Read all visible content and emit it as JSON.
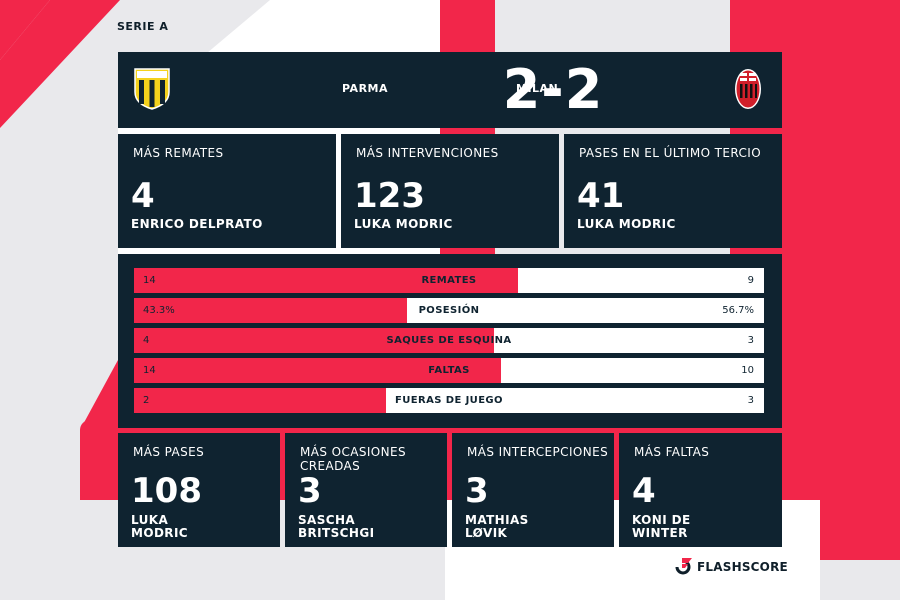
{
  "league": "SERIE A",
  "match": {
    "home_team": "PARMA",
    "away_team": "MILAN",
    "score": "2-2"
  },
  "top_cards": [
    {
      "label": "MÁS REMATES",
      "value": "4",
      "player": "ENRICO DELPRATO"
    },
    {
      "label": "MÁS INTERVENCIONES",
      "value": "123",
      "player": "LUKA MODRIC"
    },
    {
      "label": "PASES EN EL ÚLTIMO TERCIO",
      "value": "41",
      "player": "LUKA MODRIC"
    }
  ],
  "stats": [
    {
      "label": "REMATES",
      "home": "14",
      "away": "9",
      "home_share": 0.609
    },
    {
      "label": "POSESIÓN",
      "home": "43.3%",
      "away": "56.7%",
      "home_share": 0.433
    },
    {
      "label": "SAQUES DE ESQUINA",
      "home": "4",
      "away": "3",
      "home_share": 0.571
    },
    {
      "label": "FALTAS",
      "home": "14",
      "away": "10",
      "home_share": 0.583
    },
    {
      "label": "FUERAS DE JUEGO",
      "home": "2",
      "away": "3",
      "home_share": 0.4
    }
  ],
  "bottom_cards": [
    {
      "label": "MÁS PASES",
      "value": "108",
      "player_line1": "LUKA",
      "player_line2": "MODRIC"
    },
    {
      "label": "MÁS OCASIONES",
      "label_line2": "CREADAS",
      "value": "3",
      "player_line1": "SASCHA",
      "player_line2": "BRITSCHGI"
    },
    {
      "label": "MÁS INTERCEPCIONES",
      "value": "3",
      "player_line1": "MATHIAS",
      "player_line2": "LØVIK"
    },
    {
      "label": "MÁS FALTAS",
      "value": "4",
      "player_line1": "KONI DE",
      "player_line2": "WINTER"
    }
  ],
  "brand": {
    "name": "FLASHSCORE"
  },
  "crest_text": {
    "parma": "PARMA CALCIO",
    "milan_initials": "ACM",
    "milan_year": "1899"
  },
  "colors": {
    "navy": "#0f2330",
    "accent_red": "#f2264a",
    "background": "#e9e9ec"
  }
}
